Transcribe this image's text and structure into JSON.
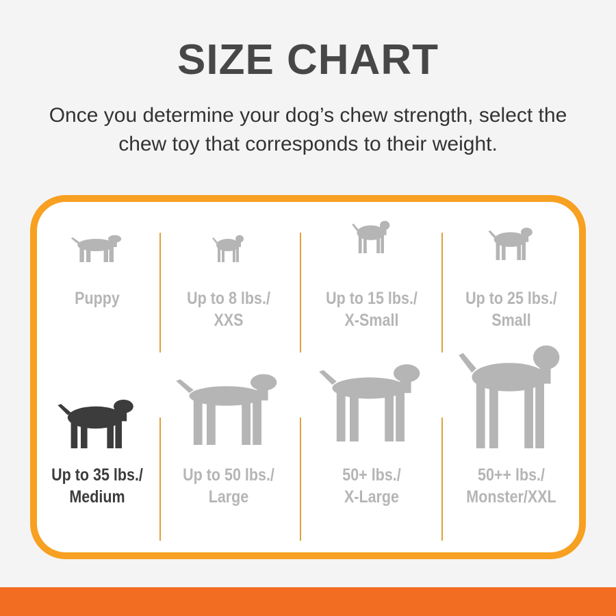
{
  "title": "SIZE CHART",
  "subtitle": [
    "Once you determine your dog’s chew strength, select the",
    "chew toy that corresponds to their weight."
  ],
  "colors": {
    "frame": "#f7a021",
    "bottom_bar": "#f26c22",
    "inactive": "#b5b5b5",
    "active": "#3c3c3c"
  },
  "sizes": [
    {
      "icon": "puppy-icon",
      "line1": "Puppy",
      "line2": "",
      "active": false
    },
    {
      "icon": "chihuahua-icon",
      "line1": "Up to 8 lbs./",
      "line2": "XXS",
      "active": false
    },
    {
      "icon": "pinscher-icon",
      "line1": "Up to 15 lbs./",
      "line2": "X-Small",
      "active": false
    },
    {
      "icon": "terrier-icon",
      "line1": "Up to 25 lbs./",
      "line2": "Small",
      "active": false
    },
    {
      "icon": "beagle-icon",
      "line1": "Up to 35 lbs./",
      "line2": "Medium",
      "active": true
    },
    {
      "icon": "labrador-icon",
      "line1": "Up to 50 lbs./",
      "line2": "Large",
      "active": false
    },
    {
      "icon": "shepherd-icon",
      "line1": "50+ lbs./",
      "line2": "X-Large",
      "active": false
    },
    {
      "icon": "great-dane-icon",
      "line1": "50++ lbs./",
      "line2": "Monster/XXL",
      "active": false
    }
  ]
}
